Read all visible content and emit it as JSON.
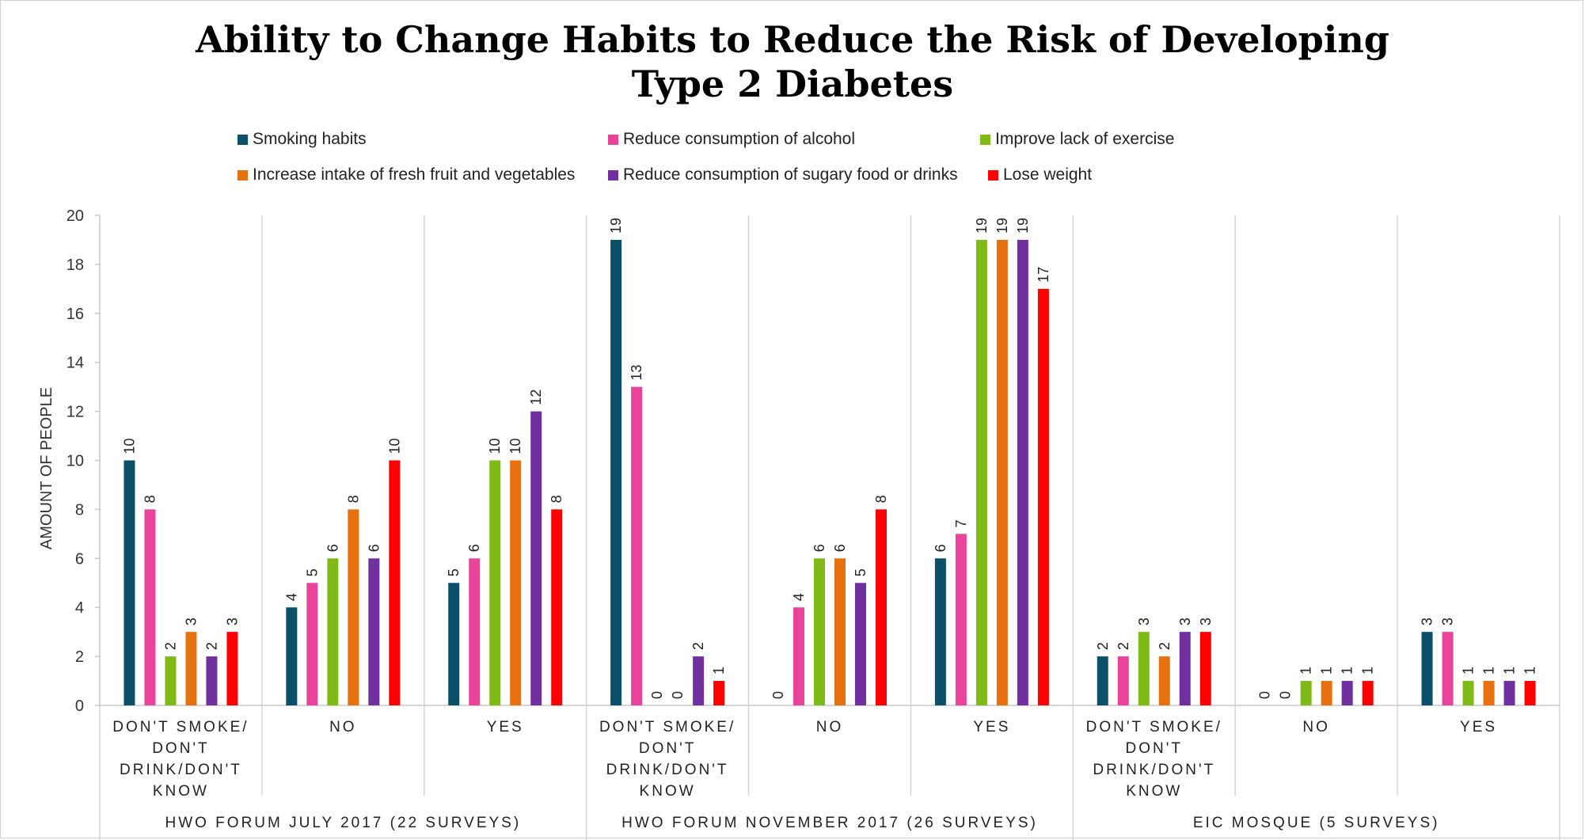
{
  "chart_data": {
    "type": "bar",
    "title": [
      "Ability to Change Habits to Reduce the Risk of Developing",
      "Type 2 Diabetes"
    ],
    "ylabel": "AMOUNT OF PEOPLE",
    "ylim": [
      0,
      20
    ],
    "yticks": [
      0,
      2,
      4,
      6,
      8,
      10,
      12,
      14,
      16,
      18,
      20
    ],
    "grid": "vertical separators between categories",
    "legend_position": "top",
    "groups": [
      {
        "label": "HWO FORUM JULY 2017 (22 SURVEYS)",
        "categories": [
          [
            "DON'T SMOKE/",
            "DON'T",
            "DRINK/DON'T",
            "KNOW"
          ],
          [
            "NO"
          ],
          [
            "YES"
          ]
        ]
      },
      {
        "label": "HWO FORUM NOVEMBER 2017 (26 SURVEYS)",
        "categories": [
          [
            "DON'T SMOKE/",
            "DON'T",
            "DRINK/DON'T",
            "KNOW"
          ],
          [
            "NO"
          ],
          [
            "YES"
          ]
        ]
      },
      {
        "label": "EIC MOSQUE (5 SURVEYS)",
        "categories": [
          [
            "DON'T SMOKE/",
            "DON'T",
            "DRINK/DON'T",
            "KNOW"
          ],
          [
            "NO"
          ],
          [
            "YES"
          ]
        ]
      }
    ],
    "series": [
      {
        "name": "Smoking habits",
        "color": "#0b5068",
        "values": [
          10,
          4,
          5,
          19,
          0,
          6,
          2,
          0,
          3
        ]
      },
      {
        "name": "Reduce consumption of alcohol",
        "color": "#e9439a",
        "values": [
          8,
          5,
          6,
          13,
          4,
          7,
          2,
          0,
          3
        ]
      },
      {
        "name": "Improve lack of exercise",
        "color": "#7fba17",
        "values": [
          2,
          6,
          10,
          0,
          6,
          19,
          3,
          1,
          1
        ]
      },
      {
        "name": "Increase intake of fresh fruit and vegetables",
        "color": "#e8710f",
        "values": [
          3,
          8,
          10,
          0,
          6,
          19,
          2,
          1,
          1
        ]
      },
      {
        "name": "Reduce consumption of sugary food or drinks",
        "color": "#7130a0",
        "values": [
          2,
          6,
          12,
          2,
          5,
          19,
          3,
          1,
          1
        ]
      },
      {
        "name": "Lose weight",
        "color": "#fe0000",
        "values": [
          3,
          10,
          8,
          1,
          8,
          17,
          3,
          1,
          1
        ]
      }
    ]
  }
}
